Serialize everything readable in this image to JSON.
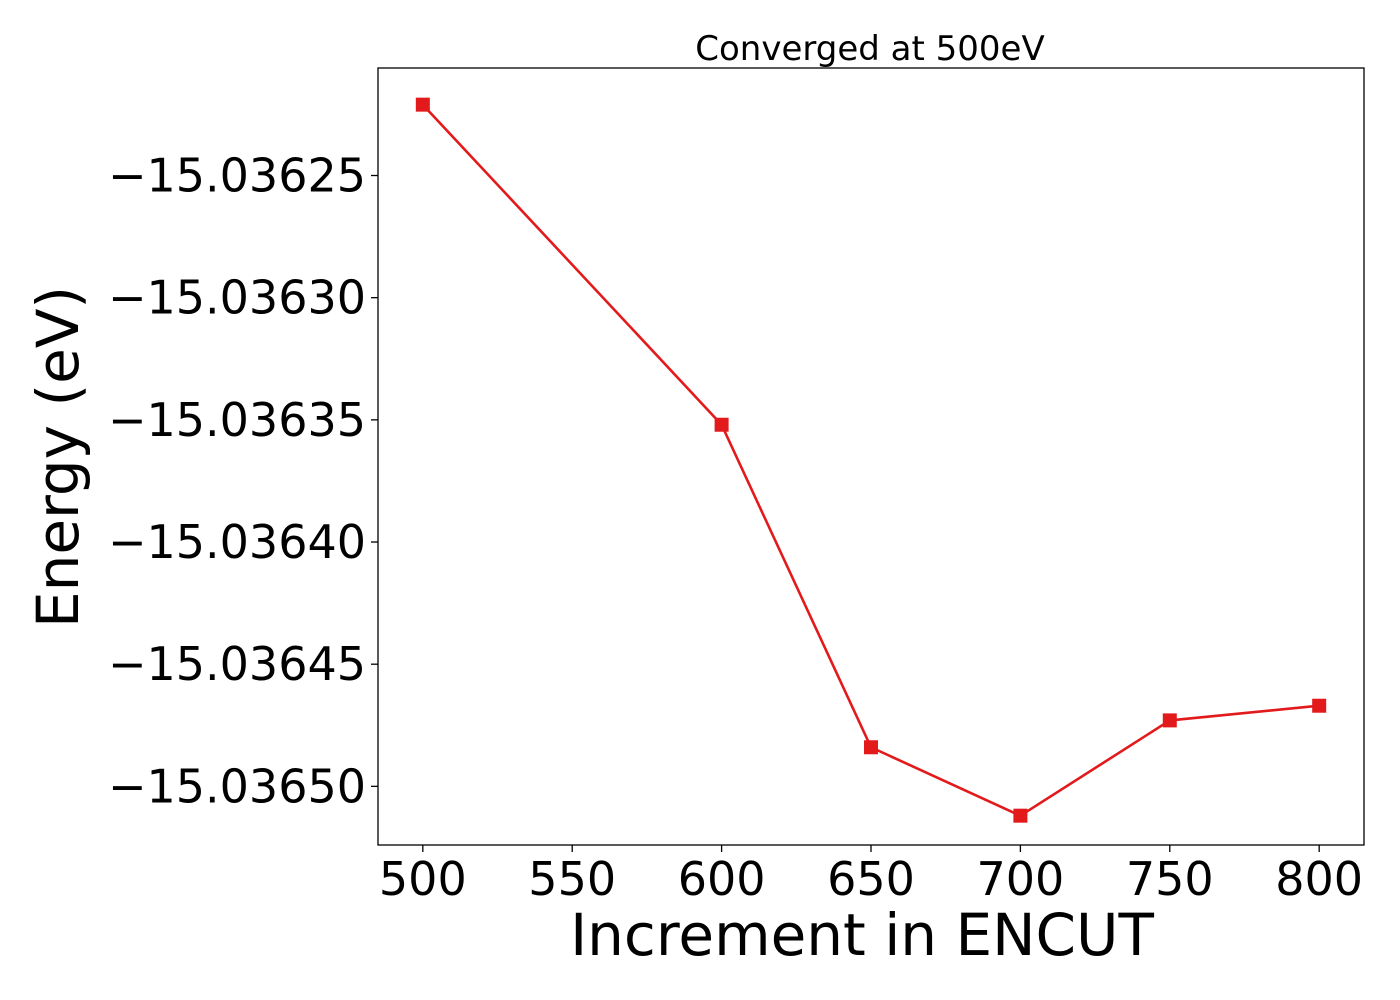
{
  "chart_data": {
    "type": "line",
    "title": "Converged at 500eV",
    "xlabel": "Increment in ENCUT",
    "ylabel": "Energy (eV)",
    "xlim": [
      485,
      815
    ],
    "ylim": [
      -15.036524,
      -15.036206
    ],
    "x_ticks": [
      500,
      550,
      600,
      650,
      700,
      750,
      800
    ],
    "x_tick_labels": [
      "500",
      "550",
      "600",
      "650",
      "700",
      "750",
      "800"
    ],
    "y_ticks": [
      -15.03625,
      -15.0363,
      -15.03635,
      -15.0364,
      -15.03645,
      -15.0365
    ],
    "y_tick_labels": [
      "−15.03625",
      "−15.03630",
      "−15.03635",
      "−15.03640",
      "−15.03645",
      "−15.03650"
    ],
    "grid": false,
    "series": [
      {
        "color": "#e31a1c",
        "marker": "square",
        "x": [
          500,
          600,
          650,
          700,
          750,
          800
        ],
        "y": [
          -15.036221,
          -15.036352,
          -15.036484,
          -15.036512,
          -15.036473,
          -15.036467
        ]
      }
    ]
  }
}
